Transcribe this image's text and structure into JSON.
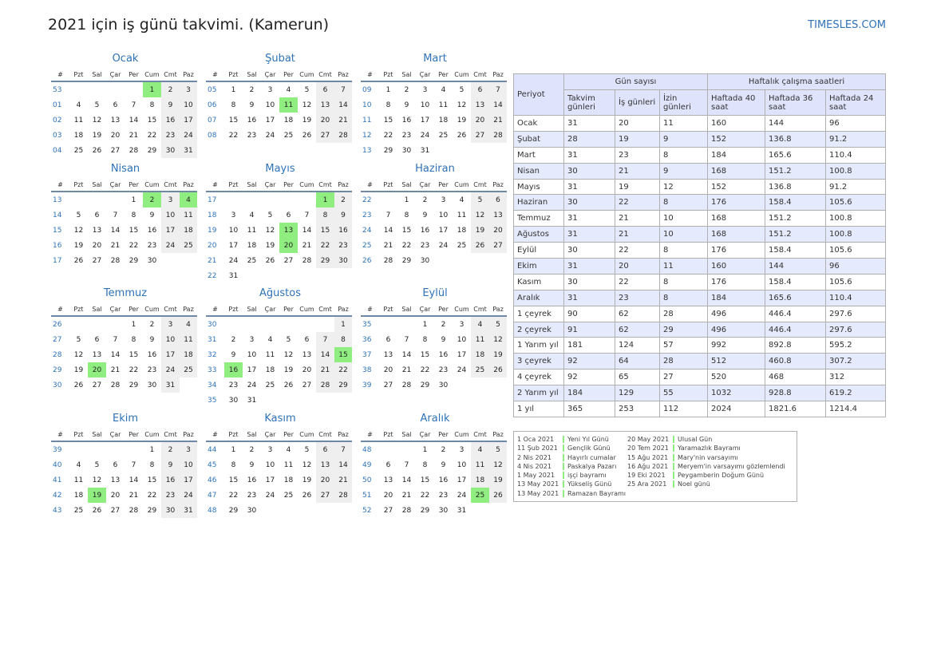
{
  "title": "2021 için iş günü takvimi. (Kamerun)",
  "site": "TIMESLES.COM",
  "dayHeaders": [
    "#",
    "Pzt",
    "Sal",
    "Çar",
    "Per",
    "Cum",
    "Cmt",
    "Paz"
  ],
  "months": [
    {
      "name": "Ocak",
      "weeks": [
        [
          "53",
          "",
          "",
          "",
          "",
          "1",
          "2",
          "3"
        ],
        [
          "01",
          "4",
          "5",
          "6",
          "7",
          "8",
          "9",
          "10"
        ],
        [
          "02",
          "11",
          "12",
          "13",
          "14",
          "15",
          "16",
          "17"
        ],
        [
          "03",
          "18",
          "19",
          "20",
          "21",
          "22",
          "23",
          "24"
        ],
        [
          "04",
          "25",
          "26",
          "27",
          "28",
          "29",
          "30",
          "31"
        ]
      ],
      "holidays": [
        "1"
      ]
    },
    {
      "name": "Şubat",
      "weeks": [
        [
          "05",
          "1",
          "2",
          "3",
          "4",
          "5",
          "6",
          "7"
        ],
        [
          "06",
          "8",
          "9",
          "10",
          "11",
          "12",
          "13",
          "14"
        ],
        [
          "07",
          "15",
          "16",
          "17",
          "18",
          "19",
          "20",
          "21"
        ],
        [
          "08",
          "22",
          "23",
          "24",
          "25",
          "26",
          "27",
          "28"
        ]
      ],
      "holidays": [
        "11"
      ]
    },
    {
      "name": "Mart",
      "weeks": [
        [
          "09",
          "1",
          "2",
          "3",
          "4",
          "5",
          "6",
          "7"
        ],
        [
          "10",
          "8",
          "9",
          "10",
          "11",
          "12",
          "13",
          "14"
        ],
        [
          "11",
          "15",
          "16",
          "17",
          "18",
          "19",
          "20",
          "21"
        ],
        [
          "12",
          "22",
          "23",
          "24",
          "25",
          "26",
          "27",
          "28"
        ],
        [
          "13",
          "29",
          "30",
          "31",
          "",
          "",
          "",
          ""
        ]
      ],
      "holidays": []
    },
    {
      "name": "Nisan",
      "weeks": [
        [
          "13",
          "",
          "",
          "",
          "1",
          "2",
          "3",
          "4"
        ],
        [
          "14",
          "5",
          "6",
          "7",
          "8",
          "9",
          "10",
          "11"
        ],
        [
          "15",
          "12",
          "13",
          "14",
          "15",
          "16",
          "17",
          "18"
        ],
        [
          "16",
          "19",
          "20",
          "21",
          "22",
          "23",
          "24",
          "25"
        ],
        [
          "17",
          "26",
          "27",
          "28",
          "29",
          "30",
          "",
          ""
        ]
      ],
      "holidays": [
        "2",
        "4"
      ]
    },
    {
      "name": "Mayıs",
      "weeks": [
        [
          "17",
          "",
          "",
          "",
          "",
          "",
          "1",
          "2"
        ],
        [
          "18",
          "3",
          "4",
          "5",
          "6",
          "7",
          "8",
          "9"
        ],
        [
          "19",
          "10",
          "11",
          "12",
          "13",
          "14",
          "15",
          "16"
        ],
        [
          "20",
          "17",
          "18",
          "19",
          "20",
          "21",
          "22",
          "23"
        ],
        [
          "21",
          "24",
          "25",
          "26",
          "27",
          "28",
          "29",
          "30"
        ],
        [
          "22",
          "31",
          "",
          "",
          "",
          "",
          "",
          ""
        ]
      ],
      "holidays": [
        "1",
        "13",
        "20"
      ]
    },
    {
      "name": "Haziran",
      "weeks": [
        [
          "22",
          "",
          "1",
          "2",
          "3",
          "4",
          "5",
          "6"
        ],
        [
          "23",
          "7",
          "8",
          "9",
          "10",
          "11",
          "12",
          "13"
        ],
        [
          "24",
          "14",
          "15",
          "16",
          "17",
          "18",
          "19",
          "20"
        ],
        [
          "25",
          "21",
          "22",
          "23",
          "24",
          "25",
          "26",
          "27"
        ],
        [
          "26",
          "28",
          "29",
          "30",
          "",
          "",
          "",
          ""
        ]
      ],
      "holidays": []
    },
    {
      "name": "Temmuz",
      "weeks": [
        [
          "26",
          "",
          "",
          "",
          "1",
          "2",
          "3",
          "4"
        ],
        [
          "27",
          "5",
          "6",
          "7",
          "8",
          "9",
          "10",
          "11"
        ],
        [
          "28",
          "12",
          "13",
          "14",
          "15",
          "16",
          "17",
          "18"
        ],
        [
          "29",
          "19",
          "20",
          "21",
          "22",
          "23",
          "24",
          "25"
        ],
        [
          "30",
          "26",
          "27",
          "28",
          "29",
          "30",
          "31",
          ""
        ]
      ],
      "holidays": [
        "20"
      ]
    },
    {
      "name": "Ağustos",
      "weeks": [
        [
          "30",
          "",
          "",
          "",
          "",
          "",
          "",
          "1"
        ],
        [
          "31",
          "2",
          "3",
          "4",
          "5",
          "6",
          "7",
          "8"
        ],
        [
          "32",
          "9",
          "10",
          "11",
          "12",
          "13",
          "14",
          "15"
        ],
        [
          "33",
          "16",
          "17",
          "18",
          "19",
          "20",
          "21",
          "22"
        ],
        [
          "34",
          "23",
          "24",
          "25",
          "26",
          "27",
          "28",
          "29"
        ],
        [
          "35",
          "30",
          "31",
          "",
          "",
          "",
          "",
          ""
        ]
      ],
      "holidays": [
        "15",
        "16"
      ]
    },
    {
      "name": "Eylül",
      "weeks": [
        [
          "35",
          "",
          "",
          "1",
          "2",
          "3",
          "4",
          "5"
        ],
        [
          "36",
          "6",
          "7",
          "8",
          "9",
          "10",
          "11",
          "12"
        ],
        [
          "37",
          "13",
          "14",
          "15",
          "16",
          "17",
          "18",
          "19"
        ],
        [
          "38",
          "20",
          "21",
          "22",
          "23",
          "24",
          "25",
          "26"
        ],
        [
          "39",
          "27",
          "28",
          "29",
          "30",
          "",
          "",
          ""
        ]
      ],
      "holidays": []
    },
    {
      "name": "Ekim",
      "weeks": [
        [
          "39",
          "",
          "",
          "",
          "",
          "1",
          "2",
          "3"
        ],
        [
          "40",
          "4",
          "5",
          "6",
          "7",
          "8",
          "9",
          "10"
        ],
        [
          "41",
          "11",
          "12",
          "13",
          "14",
          "15",
          "16",
          "17"
        ],
        [
          "42",
          "18",
          "19",
          "20",
          "21",
          "22",
          "23",
          "24"
        ],
        [
          "43",
          "25",
          "26",
          "27",
          "28",
          "29",
          "30",
          "31"
        ]
      ],
      "holidays": [
        "19"
      ]
    },
    {
      "name": "Kasım",
      "weeks": [
        [
          "44",
          "1",
          "2",
          "3",
          "4",
          "5",
          "6",
          "7"
        ],
        [
          "45",
          "8",
          "9",
          "10",
          "11",
          "12",
          "13",
          "14"
        ],
        [
          "46",
          "15",
          "16",
          "17",
          "18",
          "19",
          "20",
          "21"
        ],
        [
          "47",
          "22",
          "23",
          "24",
          "25",
          "26",
          "27",
          "28"
        ],
        [
          "48",
          "29",
          "30",
          "",
          "",
          "",
          "",
          ""
        ]
      ],
      "holidays": []
    },
    {
      "name": "Aralık",
      "weeks": [
        [
          "48",
          "",
          "",
          "1",
          "2",
          "3",
          "4",
          "5"
        ],
        [
          "49",
          "6",
          "7",
          "8",
          "9",
          "10",
          "11",
          "12"
        ],
        [
          "50",
          "13",
          "14",
          "15",
          "16",
          "17",
          "18",
          "19"
        ],
        [
          "51",
          "20",
          "21",
          "22",
          "23",
          "24",
          "25",
          "26"
        ],
        [
          "52",
          "27",
          "28",
          "29",
          "30",
          "31",
          "",
          ""
        ]
      ],
      "holidays": [
        "25"
      ]
    }
  ],
  "summary": {
    "period_header": "Periyot",
    "days_group": "Gün sayısı",
    "hours_group": "Haftalık çalışma saatleri",
    "columns": [
      "Takvim günleri",
      "İş günleri",
      "İzin günleri",
      "Haftada 40 saat",
      "Haftada 36 saat",
      "Haftada 24 saat"
    ],
    "rows": [
      [
        "Ocak",
        "31",
        "20",
        "11",
        "160",
        "144",
        "96"
      ],
      [
        "Şubat",
        "28",
        "19",
        "9",
        "152",
        "136.8",
        "91.2"
      ],
      [
        "Mart",
        "31",
        "23",
        "8",
        "184",
        "165.6",
        "110.4"
      ],
      [
        "Nisan",
        "30",
        "21",
        "9",
        "168",
        "151.2",
        "100.8"
      ],
      [
        "Mayıs",
        "31",
        "19",
        "12",
        "152",
        "136.8",
        "91.2"
      ],
      [
        "Haziran",
        "30",
        "22",
        "8",
        "176",
        "158.4",
        "105.6"
      ],
      [
        "Temmuz",
        "31",
        "21",
        "10",
        "168",
        "151.2",
        "100.8"
      ],
      [
        "Ağustos",
        "31",
        "21",
        "10",
        "168",
        "151.2",
        "100.8"
      ],
      [
        "Eylül",
        "30",
        "22",
        "8",
        "176",
        "158.4",
        "105.6"
      ],
      [
        "Ekim",
        "31",
        "20",
        "11",
        "160",
        "144",
        "96"
      ],
      [
        "Kasım",
        "30",
        "22",
        "8",
        "176",
        "158.4",
        "105.6"
      ],
      [
        "Aralık",
        "31",
        "23",
        "8",
        "184",
        "165.6",
        "110.4"
      ],
      [
        "1 çeyrek",
        "90",
        "62",
        "28",
        "496",
        "446.4",
        "297.6"
      ],
      [
        "2 çeyrek",
        "91",
        "62",
        "29",
        "496",
        "446.4",
        "297.6"
      ],
      [
        "1 Yarım yıl",
        "181",
        "124",
        "57",
        "992",
        "892.8",
        "595.2"
      ],
      [
        "3 çeyrek",
        "92",
        "64",
        "28",
        "512",
        "460.8",
        "307.2"
      ],
      [
        "4 çeyrek",
        "92",
        "65",
        "27",
        "520",
        "468",
        "312"
      ],
      [
        "2 Yarım yıl",
        "184",
        "129",
        "55",
        "1032",
        "928.8",
        "619.2"
      ],
      [
        "1 yıl",
        "365",
        "253",
        "112",
        "2024",
        "1821.6",
        "1214.4"
      ]
    ]
  },
  "holiday_list": [
    [
      {
        "date": "1 Oca 2021",
        "name": "Yeni Yıl Günü"
      },
      {
        "date": "11 Şub 2021",
        "name": "Gençlik Günü"
      },
      {
        "date": "2 Nis 2021",
        "name": "Hayırlı cumalar"
      },
      {
        "date": "4 Nis 2021",
        "name": "Paskalya Pazarı"
      },
      {
        "date": "1 May 2021",
        "name": "işçi bayramı"
      },
      {
        "date": "13 May 2021",
        "name": "Yükseliş Günü"
      },
      {
        "date": "13 May 2021",
        "name": "Ramazan Bayramı"
      }
    ],
    [
      {
        "date": "20 May 2021",
        "name": "Ulusal Gün"
      },
      {
        "date": "20 Tem 2021",
        "name": "Yaramazlık Bayramı"
      },
      {
        "date": "15 Ağu 2021",
        "name": "Mary'nin varsayımı"
      },
      {
        "date": "16 Ağu 2021",
        "name": "Meryem'in varsayımı gözlemlendi"
      },
      {
        "date": "19 Eki 2021",
        "name": "Peygamberin Doğum Günü"
      },
      {
        "date": "25 Ara 2021",
        "name": "Noel günü"
      }
    ]
  ]
}
